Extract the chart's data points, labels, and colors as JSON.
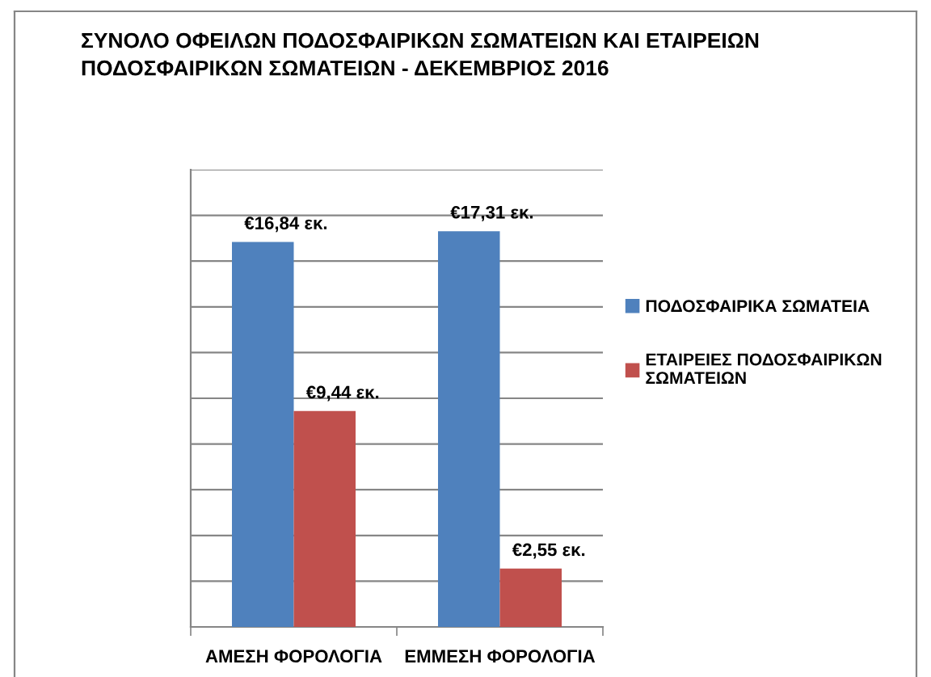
{
  "chart_data": {
    "type": "bar",
    "title": "ΣΥΝΟΛΟ ΟΦΕΙΛΩΝ ΠΟΔΟΣΦΑΙΡΙΚΩΝ ΣΩΜΑΤΕΙΩΝ ΚΑΙ ΕΤΑΙΡΕΙΩΝ ΠΟΔΟΣΦΑΙΡΙΚΩΝ ΣΩΜΑΤΕΙΩΝ - ΔΕΚΕΜΒΡΙΟΣ 2016",
    "categories": [
      "ΑΜΕΣΗ ΦΟΡΟΛΟΓΙΑ",
      "ΕΜΜΕΣΗ ΦΟΡΟΛΟΓΙΑ"
    ],
    "series": [
      {
        "name": "ΠΟΔΟΣΦΑΙΡΙΚΑ ΣΩΜΑΤΕΙΑ",
        "color": "#4f81bd",
        "values": [
          16.84,
          17.31
        ],
        "value_labels": [
          "€16,84 εκ.",
          "€17,31 εκ."
        ]
      },
      {
        "name": "ΕΤΑΙΡΕΙΕΣ ΠΟΔΟΣΦΑΙΡΙΚΩΝ ΣΩΜΑΤΕΙΩΝ",
        "color": "#c0504d",
        "values": [
          9.44,
          2.55
        ],
        "value_labels": [
          "€9,44 εκ.",
          "€2,55 εκ."
        ]
      }
    ],
    "ylim": [
      0,
      20
    ],
    "yticks": [
      {
        "value": 0,
        "label": null
      },
      {
        "value": 2,
        "label": null
      },
      {
        "value": 4,
        "label": null
      },
      {
        "value": 6,
        "label": null
      },
      {
        "value": 8,
        "label": null
      },
      {
        "value": 10,
        "label": null
      },
      {
        "value": 12,
        "label": null
      },
      {
        "value": 14,
        "label": null
      },
      {
        "value": 16,
        "label": null
      },
      {
        "value": 18,
        "label": null
      },
      {
        "value": 20,
        "label": null
      }
    ],
    "grid": "y",
    "legend": "right",
    "tick_labels": "x"
  }
}
